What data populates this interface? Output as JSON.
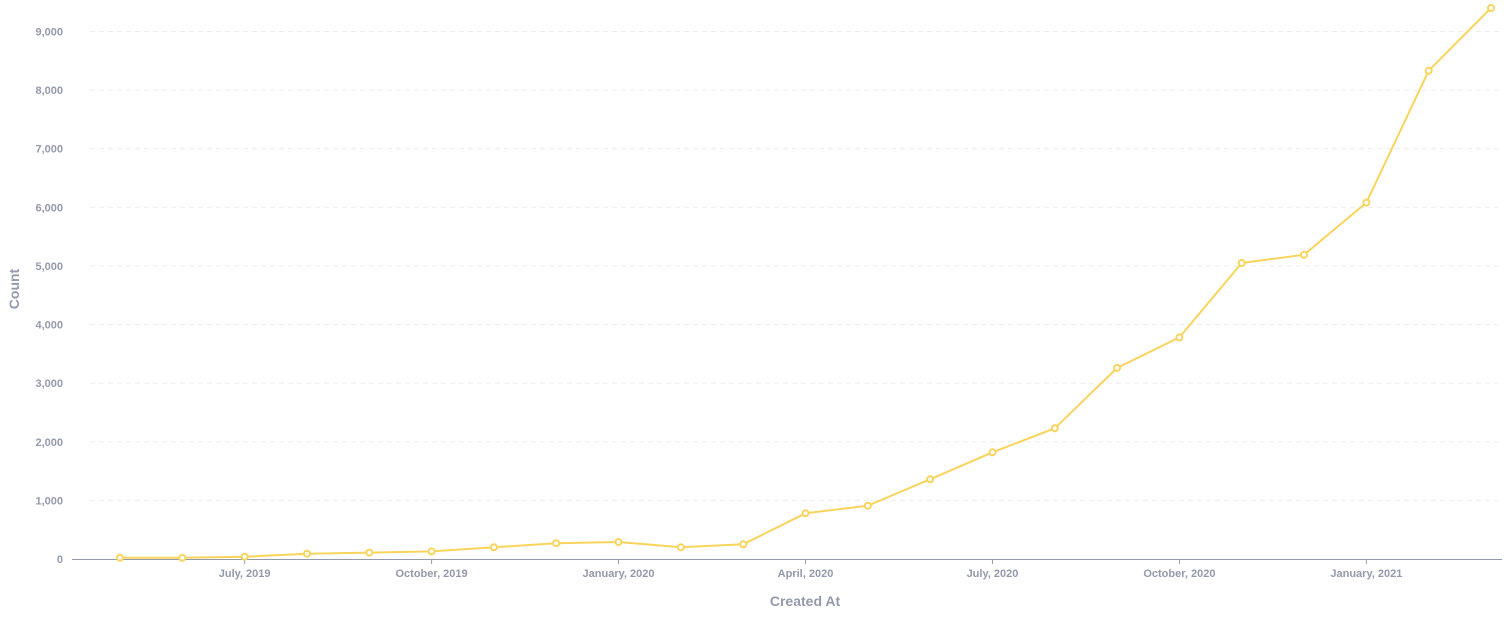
{
  "chart_data": {
    "type": "line",
    "xlabel": "Created At",
    "ylabel": "Count",
    "ylim": [
      0,
      9400
    ],
    "y_ticks": [
      0,
      1000,
      2000,
      3000,
      4000,
      5000,
      6000,
      7000,
      8000,
      9000
    ],
    "y_tick_labels": [
      "0",
      "1,000",
      "2,000",
      "3,000",
      "4,000",
      "5,000",
      "6,000",
      "7,000",
      "8,000",
      "9,000"
    ],
    "x_ticks": [
      "2019-07",
      "2019-10",
      "2020-01",
      "2020-04",
      "2020-07",
      "2020-10",
      "2021-01"
    ],
    "x_tick_labels": [
      "July, 2019",
      "October, 2019",
      "January, 2020",
      "April, 2020",
      "July, 2020",
      "October, 2020",
      "January, 2021"
    ],
    "grid": true,
    "colors": {
      "line": "#f9d45c",
      "axis": "#949aab",
      "grid": "#ecedf0"
    },
    "x": [
      "2019-05",
      "2019-06",
      "2019-07",
      "2019-08",
      "2019-09",
      "2019-10",
      "2019-11",
      "2019-12",
      "2020-01",
      "2020-02",
      "2020-03",
      "2020-04",
      "2020-05",
      "2020-06",
      "2020-07",
      "2020-08",
      "2020-09",
      "2020-10",
      "2020-11",
      "2020-12",
      "2021-01",
      "2021-02",
      "2021-03"
    ],
    "series": [
      {
        "values": [
          20,
          20,
          40,
          90,
          110,
          130,
          200,
          270,
          290,
          200,
          250,
          780,
          910,
          1360,
          1820,
          2230,
          3260,
          3780,
          5050,
          5190,
          6080,
          8330,
          9400
        ]
      }
    ]
  }
}
